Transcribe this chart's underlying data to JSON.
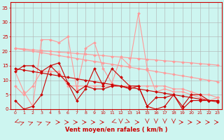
{
  "xlabel": "Vent moyen/en rafales ( km/h )",
  "background_color": "#cdf5f0",
  "grid_color": "#b0b0b0",
  "x": [
    0,
    1,
    2,
    3,
    4,
    5,
    6,
    7,
    8,
    9,
    10,
    11,
    12,
    13,
    14,
    15,
    16,
    17,
    18,
    19,
    20,
    21,
    22,
    23
  ],
  "lines_dark": [
    [
      3,
      0,
      1,
      5,
      15,
      16,
      9,
      3,
      7,
      14,
      8,
      14,
      11,
      8,
      8,
      1,
      0,
      1,
      5,
      0,
      3,
      3,
      3,
      3
    ],
    [
      13,
      15,
      15,
      13,
      15,
      12,
      9,
      6,
      8,
      7,
      7,
      8,
      8,
      7,
      8,
      1,
      4,
      4,
      5,
      1,
      5,
      5,
      3,
      3
    ],
    [
      14.0,
      13.5,
      13.0,
      12.5,
      12.0,
      11.5,
      11.0,
      10.5,
      10.0,
      9.5,
      9.0,
      8.5,
      8.0,
      7.5,
      7.0,
      6.5,
      6.0,
      5.5,
      5.0,
      4.5,
      4.0,
      3.5,
      3.0,
      2.5
    ]
  ],
  "lines_light": [
    [
      13,
      6,
      1,
      24,
      24,
      23,
      25,
      7,
      21,
      23,
      14,
      9,
      18,
      15,
      33,
      14,
      6,
      7,
      6,
      6,
      5,
      4,
      3,
      4
    ],
    [
      8,
      5,
      8,
      13,
      13,
      13,
      8,
      8,
      8,
      8,
      8,
      8,
      8,
      8,
      8,
      8,
      8,
      8,
      7,
      7,
      6,
      5,
      5,
      4
    ],
    [
      21.0,
      20.5,
      20.0,
      19.5,
      19.0,
      18.5,
      18.0,
      17.5,
      17.0,
      16.5,
      16.0,
      15.5,
      15.0,
      14.5,
      14.0,
      13.5,
      13.0,
      12.5,
      12.0,
      11.5,
      11.0,
      10.5,
      10.0,
      9.5
    ],
    [
      21.0,
      20.8,
      20.5,
      20.2,
      20.0,
      19.7,
      19.5,
      19.2,
      19.0,
      18.7,
      18.5,
      18.2,
      18.0,
      17.7,
      17.5,
      17.2,
      17.0,
      16.7,
      16.5,
      16.2,
      16.0,
      15.7,
      15.5,
      15.2
    ]
  ],
  "ylim": [
    0,
    37
  ],
  "yticks": [
    0,
    5,
    10,
    15,
    20,
    25,
    30,
    35
  ],
  "xticks": [
    0,
    1,
    2,
    3,
    4,
    5,
    6,
    7,
    8,
    9,
    10,
    11,
    12,
    13,
    14,
    15,
    16,
    17,
    18,
    19,
    20,
    21,
    22,
    23
  ],
  "dark_color": "#cc0000",
  "light_color": "#ff9999",
  "markersize": 2.0,
  "wind_arrows": [
    [
      225,
      -1
    ],
    [
      45,
      1
    ],
    [
      45,
      1
    ],
    [
      45,
      1
    ],
    [
      45,
      1
    ],
    [
      0,
      0
    ],
    [
      0,
      0
    ],
    [
      0,
      0
    ],
    [
      0,
      0
    ],
    [
      0,
      0
    ],
    [
      0,
      0
    ],
    [
      225,
      -1
    ],
    [
      180,
      -1
    ],
    [
      135,
      1
    ],
    [
      0,
      0
    ],
    [
      270,
      0
    ],
    [
      270,
      0
    ],
    [
      270,
      0
    ],
    [
      270,
      0
    ],
    [
      0,
      0
    ],
    [
      0,
      0
    ],
    [
      0,
      0
    ],
    [
      0,
      0
    ],
    [
      0,
      0
    ]
  ]
}
